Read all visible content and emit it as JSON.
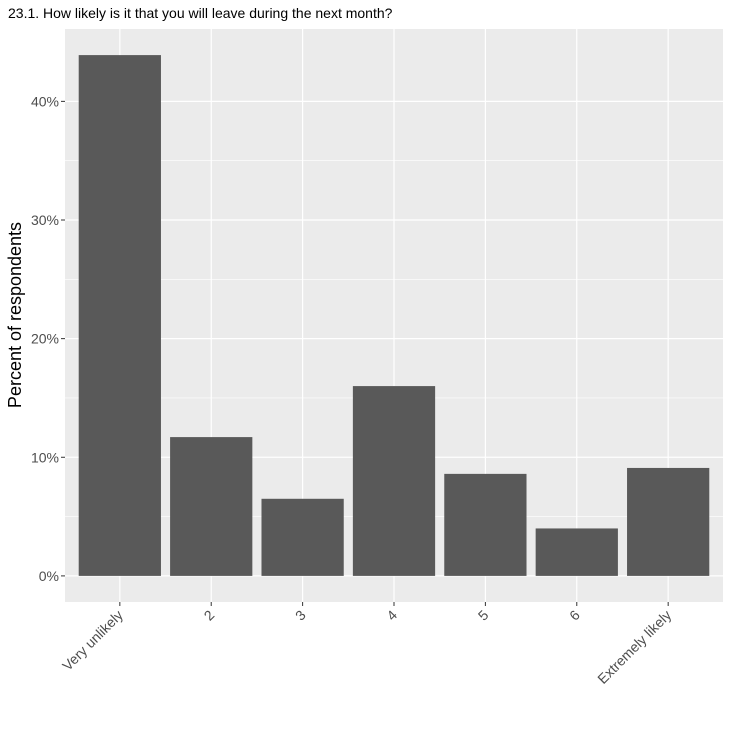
{
  "chart_data": {
    "type": "bar",
    "title": "23.1. How likely is it that you will leave during the next month?",
    "ylabel": "Percent of respondents",
    "xlabel": "",
    "categories": [
      "Very unlikely",
      "2",
      "3",
      "4",
      "5",
      "6",
      "Extremely likely"
    ],
    "values": [
      43.9,
      11.7,
      6.5,
      16.0,
      8.6,
      4.0,
      9.1
    ],
    "yticks": [
      0,
      10,
      20,
      30,
      40
    ],
    "ytick_labels": [
      "0%",
      "10%",
      "20%",
      "30%",
      "40%"
    ],
    "ylim": [
      -2.2,
      46.1
    ],
    "grid": true,
    "colors": {
      "bar": "#595959",
      "panel": "#ebebeb",
      "grid": "#ffffff",
      "tick": "#4d4d4d"
    }
  }
}
